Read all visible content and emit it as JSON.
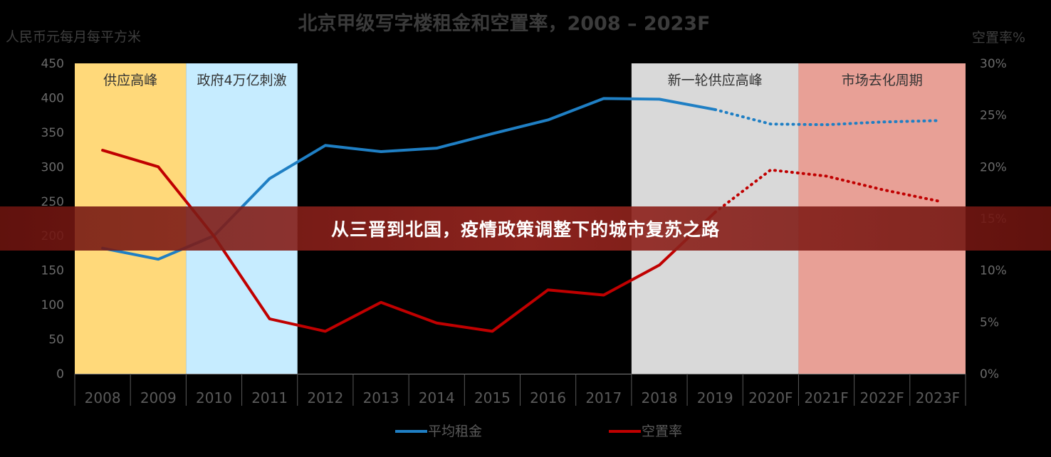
{
  "chart_data": {
    "type": "line",
    "title": "北京甲级写字楼租金和空置率，2008 – 2023F",
    "y_left_label": "人民币元每月每平方米",
    "y_right_label": "空置率%",
    "categories": [
      "2008",
      "2009",
      "2010",
      "2011",
      "2012",
      "2013",
      "2014",
      "2015",
      "2016",
      "2017",
      "2018",
      "2019",
      "2020F",
      "2021F",
      "2022F",
      "2023F"
    ],
    "y_left_ticks": [
      "0",
      "50",
      "100",
      "150",
      "200",
      "250",
      "300",
      "350",
      "400",
      "450"
    ],
    "y_right_ticks": [
      "0%",
      "5%",
      "10%",
      "15%",
      "20%",
      "25%",
      "30%"
    ],
    "ylim_left": [
      0,
      450
    ],
    "ylim_right": [
      0,
      30
    ],
    "series": [
      {
        "name": "平均租金",
        "axis": "left",
        "color": "#1f7fc4",
        "values": [
          182,
          166,
          200,
          283,
          331,
          322,
          327,
          348,
          368,
          399,
          398,
          383,
          362,
          361,
          365,
          367
        ],
        "forecast_from_index": 11
      },
      {
        "name": "空置率",
        "axis": "right",
        "color": "#c00000",
        "values": [
          21.6,
          20.0,
          13.3,
          5.3,
          4.1,
          6.9,
          4.9,
          4.1,
          8.1,
          7.6,
          10.5,
          15.6,
          19.7,
          19.1,
          17.8,
          16.7
        ],
        "forecast_from_index": 11
      }
    ],
    "bands": [
      {
        "label": "供应高峰",
        "start": "2008",
        "end": "2009",
        "color": "#ffd97a"
      },
      {
        "label": "政府4万亿刺激",
        "start": "2010",
        "end": "2011",
        "color": "#c6ecff"
      },
      {
        "label": "新一轮供应高峰",
        "start": "2018",
        "end": "2020F",
        "color": "#d9d9d9"
      },
      {
        "label": "市场去化周期",
        "start": "2021F",
        "end": "2023F",
        "color": "#e8a096"
      }
    ],
    "legend_position": "bottom"
  },
  "banner_text": "从三晋到北国，疫情政策调整下的城市复苏之路"
}
